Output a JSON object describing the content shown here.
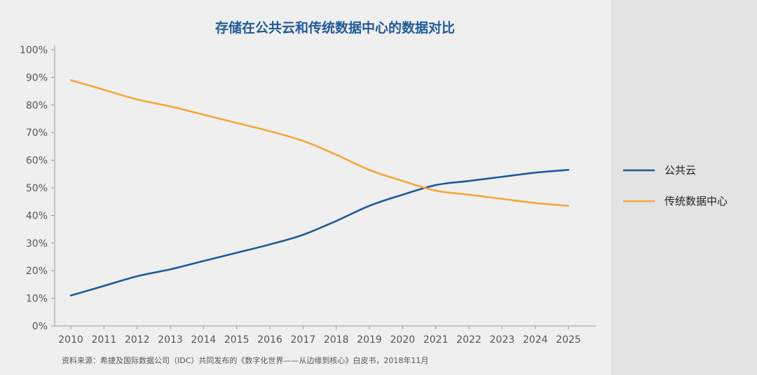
{
  "chart_data": {
    "type": "line",
    "title": "存储在公共云和传统数据中心的数据对比",
    "x": [
      "2010",
      "2011",
      "2012",
      "2013",
      "2014",
      "2015",
      "2016",
      "2017",
      "2018",
      "2019",
      "2020",
      "2021",
      "2022",
      "2023",
      "2024",
      "2025"
    ],
    "y_ticks": [
      "0%",
      "10%",
      "20%",
      "30%",
      "40%",
      "50%",
      "60%",
      "70%",
      "80%",
      "90%",
      "100%"
    ],
    "ylim": [
      0,
      100
    ],
    "grid": false,
    "legend_position": "right",
    "series": [
      {
        "name": "公共云",
        "color": "#1f5a99",
        "values": [
          11,
          14.5,
          18,
          20.5,
          23.5,
          26.5,
          29.5,
          33,
          38,
          43.5,
          47.5,
          51,
          52.5,
          54,
          55.5,
          56.5
        ]
      },
      {
        "name": "传统数据中心",
        "color": "#f5a63a",
        "values": [
          89,
          85.5,
          82,
          79.5,
          76.5,
          73.5,
          70.5,
          67,
          62,
          56.5,
          52.5,
          49,
          47.5,
          46,
          44.5,
          43.5
        ]
      }
    ]
  },
  "source_note": "资料来源：希捷及国际数据公司（IDC）共同发布的《数字化世界——从边缘到核心》白皮书，2018年11月"
}
